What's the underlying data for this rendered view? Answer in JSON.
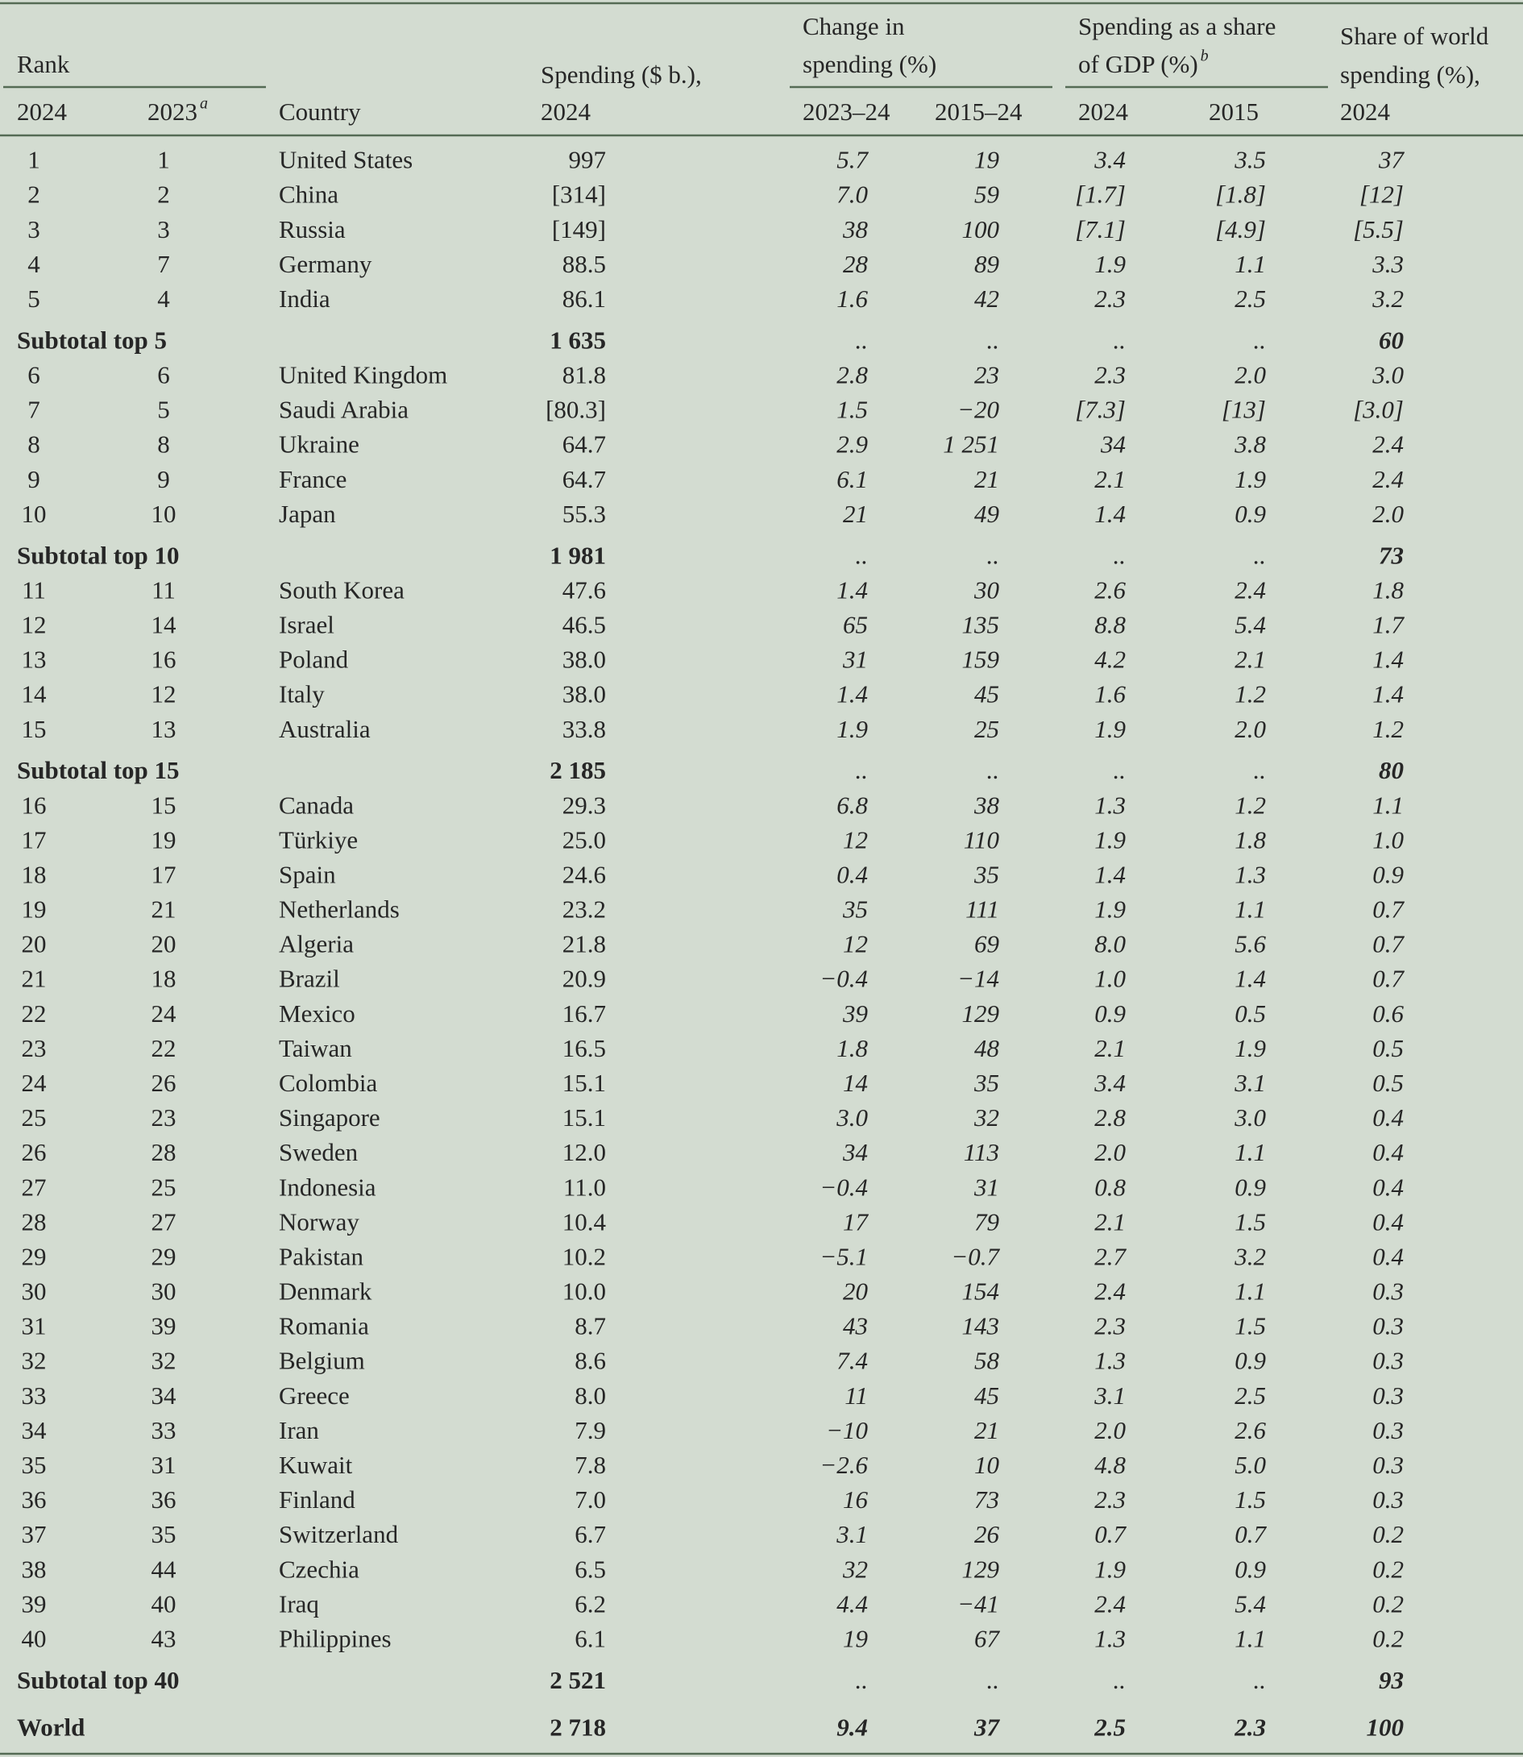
{
  "header": {
    "rank": "Rank",
    "rank_2024": "2024",
    "rank_2023": "2023",
    "rank_2023_note": "a",
    "country": "Country",
    "spending": [
      "Spending ($ b.),",
      "2024"
    ],
    "change": [
      "Change in",
      "spending (%)"
    ],
    "change_a": "2023–24",
    "change_b": "2015–24",
    "gdp": [
      "Spending as a share",
      "of GDP (%)"
    ],
    "gdp_note": "b",
    "gdp_a": "2024",
    "gdp_b": "2015",
    "share": [
      "Share of world",
      "spending (%),",
      "2024"
    ]
  },
  "rows": [
    [
      "1",
      "1",
      "United States",
      "997",
      "5.7",
      "19",
      "3.4",
      "3.5",
      "37"
    ],
    [
      "2",
      "2",
      "China",
      "[314]",
      "7.0",
      "59",
      "[1.7]",
      "[1.8]",
      "[12]"
    ],
    [
      "3",
      "3",
      "Russia",
      "[149]",
      "38",
      "100",
      "[7.1]",
      "[4.9]",
      "[5.5]"
    ],
    [
      "4",
      "7",
      "Germany",
      "88.5",
      "28",
      "89",
      "1.9",
      "1.1",
      "3.3"
    ],
    [
      "5",
      "4",
      "India",
      "86.1",
      "1.6",
      "42",
      "2.3",
      "2.5",
      "3.2"
    ],
    [
      "Subtotal top 5",
      "1 635",
      "..",
      "..",
      "..",
      "..",
      "60"
    ],
    [
      "6",
      "6",
      "United Kingdom",
      "81.8",
      "2.8",
      "23",
      "2.3",
      "2.0",
      "3.0"
    ],
    [
      "7",
      "5",
      "Saudi Arabia",
      "[80.3]",
      "1.5",
      "−20",
      "[7.3]",
      "[13]",
      "[3.0]"
    ],
    [
      "8",
      "8",
      "Ukraine",
      "64.7",
      "2.9",
      "1 251",
      "34",
      "3.8",
      "2.4"
    ],
    [
      "9",
      "9",
      "France",
      "64.7",
      "6.1",
      "21",
      "2.1",
      "1.9",
      "2.4"
    ],
    [
      "10",
      "10",
      "Japan",
      "55.3",
      "21",
      "49",
      "1.4",
      "0.9",
      "2.0"
    ],
    [
      "Subtotal top 10",
      "1 981",
      "..",
      "..",
      "..",
      "..",
      "73"
    ],
    [
      "11",
      "11",
      "South Korea",
      "47.6",
      "1.4",
      "30",
      "2.6",
      "2.4",
      "1.8"
    ],
    [
      "12",
      "14",
      "Israel",
      "46.5",
      "65",
      "135",
      "8.8",
      "5.4",
      "1.7"
    ],
    [
      "13",
      "16",
      "Poland",
      "38.0",
      "31",
      "159",
      "4.2",
      "2.1",
      "1.4"
    ],
    [
      "14",
      "12",
      "Italy",
      "38.0",
      "1.4",
      "45",
      "1.6",
      "1.2",
      "1.4"
    ],
    [
      "15",
      "13",
      "Australia",
      "33.8",
      "1.9",
      "25",
      "1.9",
      "2.0",
      "1.2"
    ],
    [
      "Subtotal top 15",
      "2 185",
      "..",
      "..",
      "..",
      "..",
      "80"
    ],
    [
      "16",
      "15",
      "Canada",
      "29.3",
      "6.8",
      "38",
      "1.3",
      "1.2",
      "1.1"
    ],
    [
      "17",
      "19",
      "Türkiye",
      "25.0",
      "12",
      "110",
      "1.9",
      "1.8",
      "1.0"
    ],
    [
      "18",
      "17",
      "Spain",
      "24.6",
      "0.4",
      "35",
      "1.4",
      "1.3",
      "0.9"
    ],
    [
      "19",
      "21",
      "Netherlands",
      "23.2",
      "35",
      "111",
      "1.9",
      "1.1",
      "0.7"
    ],
    [
      "20",
      "20",
      "Algeria",
      "21.8",
      "12",
      "69",
      "8.0",
      "5.6",
      "0.7"
    ],
    [
      "21",
      "18",
      "Brazil",
      "20.9",
      "−0.4",
      "−14",
      "1.0",
      "1.4",
      "0.7"
    ],
    [
      "22",
      "24",
      "Mexico",
      "16.7",
      "39",
      "129",
      "0.9",
      "0.5",
      "0.6"
    ],
    [
      "23",
      "22",
      "Taiwan",
      "16.5",
      "1.8",
      "48",
      "2.1",
      "1.9",
      "0.5"
    ],
    [
      "24",
      "26",
      "Colombia",
      "15.1",
      "14",
      "35",
      "3.4",
      "3.1",
      "0.5"
    ],
    [
      "25",
      "23",
      "Singapore",
      "15.1",
      "3.0",
      "32",
      "2.8",
      "3.0",
      "0.4"
    ],
    [
      "26",
      "28",
      "Sweden",
      "12.0",
      "34",
      "113",
      "2.0",
      "1.1",
      "0.4"
    ],
    [
      "27",
      "25",
      "Indonesia",
      "11.0",
      "−0.4",
      "31",
      "0.8",
      "0.9",
      "0.4"
    ],
    [
      "28",
      "27",
      "Norway",
      "10.4",
      "17",
      "79",
      "2.1",
      "1.5",
      "0.4"
    ],
    [
      "29",
      "29",
      "Pakistan",
      "10.2",
      "−5.1",
      "−0.7",
      "2.7",
      "3.2",
      "0.4"
    ],
    [
      "30",
      "30",
      "Denmark",
      "10.0",
      "20",
      "154",
      "2.4",
      "1.1",
      "0.3"
    ],
    [
      "31",
      "39",
      "Romania",
      "8.7",
      "43",
      "143",
      "2.3",
      "1.5",
      "0.3"
    ],
    [
      "32",
      "32",
      "Belgium",
      "8.6",
      "7.4",
      "58",
      "1.3",
      "0.9",
      "0.3"
    ],
    [
      "33",
      "34",
      "Greece",
      "8.0",
      "11",
      "45",
      "3.1",
      "2.5",
      "0.3"
    ],
    [
      "34",
      "33",
      "Iran",
      "7.9",
      "−10",
      "21",
      "2.0",
      "2.6",
      "0.3"
    ],
    [
      "35",
      "31",
      "Kuwait",
      "7.8",
      "−2.6",
      "10",
      "4.8",
      "5.0",
      "0.3"
    ],
    [
      "36",
      "36",
      "Finland",
      "7.0",
      "16",
      "73",
      "2.3",
      "1.5",
      "0.3"
    ],
    [
      "37",
      "35",
      "Switzerland",
      "6.7",
      "3.1",
      "26",
      "0.7",
      "0.7",
      "0.2"
    ],
    [
      "38",
      "44",
      "Czechia",
      "6.5",
      "32",
      "129",
      "1.9",
      "0.9",
      "0.2"
    ],
    [
      "39",
      "40",
      "Iraq",
      "6.2",
      "4.4",
      "−41",
      "2.4",
      "5.4",
      "0.2"
    ],
    [
      "40",
      "43",
      "Philippines",
      "6.1",
      "19",
      "67",
      "1.3",
      "1.1",
      "0.2"
    ],
    [
      "Subtotal top 40",
      "2 521",
      "..",
      "..",
      "..",
      "..",
      "93"
    ],
    [
      "World",
      "2 718",
      "9.4",
      "37",
      "2.5",
      "2.3",
      "100"
    ]
  ]
}
